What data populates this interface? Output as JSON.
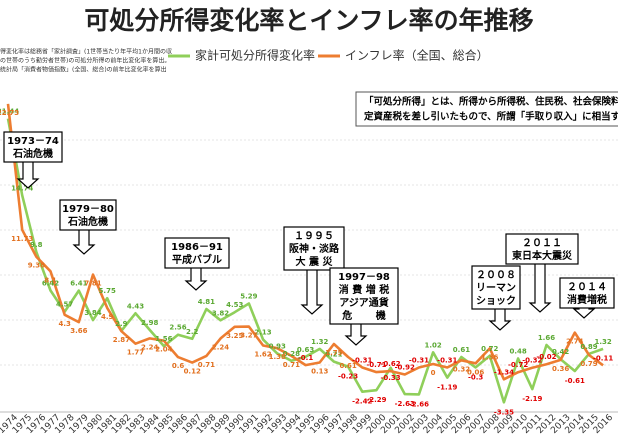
{
  "chart_data": {
    "type": "line",
    "title": "可処分所得変化率とインフレ率の年推移",
    "notes": [
      "得変化率は総務省「家計調査」(1世帯当たり年平均1か月間の収",
      "の世帯のうち勤労者世帯)の可処分所得の前年比変化率を算出。",
      "統計局「消費者物価指数」(全国、総合)の前年比変化率を算出"
    ],
    "definition": [
      "「可処分所得」とは、所得から所得税、住民税、社会保険料",
      "定資産税を差し引いたもので、所謂「手取り収入」に相当す"
    ],
    "categories": [
      "1974",
      "1975",
      "1976",
      "1977",
      "1978",
      "1979",
      "1980",
      "1981",
      "1982",
      "1983",
      "1984",
      "1985",
      "1986",
      "1987",
      "1988",
      "1989",
      "1990",
      "1991",
      "1992",
      "1993",
      "1994",
      "1995",
      "1996",
      "1997",
      "1998",
      "1999",
      "2000",
      "2001",
      "2002",
      "2003",
      "2004",
      "2005",
      "2006",
      "2007",
      "2008",
      "2009",
      "2010",
      "2011",
      "2012",
      "2013",
      "2014",
      "2015",
      "2016"
    ],
    "series": [
      {
        "name": "家計可処分所得変化率",
        "color": "#8fcf5a",
        "label_color": "#5aa832",
        "values": [
          21.44,
          14.74,
          9.8,
          6.42,
          4.57,
          6.41,
          3.84,
          5.75,
          2.9,
          4.43,
          2.98,
          1.56,
          2.56,
          2.2,
          4.81,
          3.82,
          4.53,
          5.29,
          2.13,
          0.93,
          0.28,
          0.63,
          1.32,
          0.21,
          -0.23,
          -2.42,
          -2.29,
          -0.33,
          -2.63,
          -2.66,
          1.02,
          -1.19,
          0.61,
          -0.3,
          0.72,
          -3.35,
          0.48,
          -2.19,
          1.66,
          0.42,
          -0.61,
          0.89,
          1.32
        ]
      },
      {
        "name": "インフレ率（全国、総合）",
        "color": "#ed7d31",
        "label_color": "#e2701f",
        "values": [
          22.73,
          11.73,
          9.38,
          8.1,
          4.3,
          3.66,
          7.81,
          4.9,
          2.87,
          1.77,
          2.24,
          2.04,
          0.6,
          0.12,
          0.71,
          2.24,
          3.25,
          3.27,
          1.62,
          1.38,
          0.71,
          -0.1,
          0.13,
          1.75,
          0.61,
          -0.31,
          -0.71,
          -0.62,
          -0.92,
          -0.31,
          0,
          -0.31,
          0.32,
          0.06,
          1.36,
          -1.34,
          -0.72,
          -0.32,
          -0.02,
          0.36,
          2.74,
          0.79,
          -0.11
        ]
      }
    ],
    "negative_label_color": "#e00000",
    "ylim": [
      -4.5,
      27
    ],
    "annotations": [
      {
        "lines": [
          "1973－74",
          "石油危機"
        ]
      },
      {
        "lines": [
          "1979－80",
          "石油危機"
        ]
      },
      {
        "lines": [
          "1986－91",
          "平成バブル"
        ]
      },
      {
        "lines": [
          "１９９５",
          "阪神・淡路",
          "大 震 災"
        ]
      },
      {
        "lines": [
          "1997－98",
          "消 費 増 税",
          "アジア通貨",
          "危　　 機"
        ]
      },
      {
        "lines": [
          "２００８",
          "リーマン",
          "ショック"
        ]
      },
      {
        "lines": [
          "２０１１",
          "東日本大震災"
        ]
      },
      {
        "lines": [
          "２０１４",
          "消費増税"
        ]
      }
    ]
  }
}
